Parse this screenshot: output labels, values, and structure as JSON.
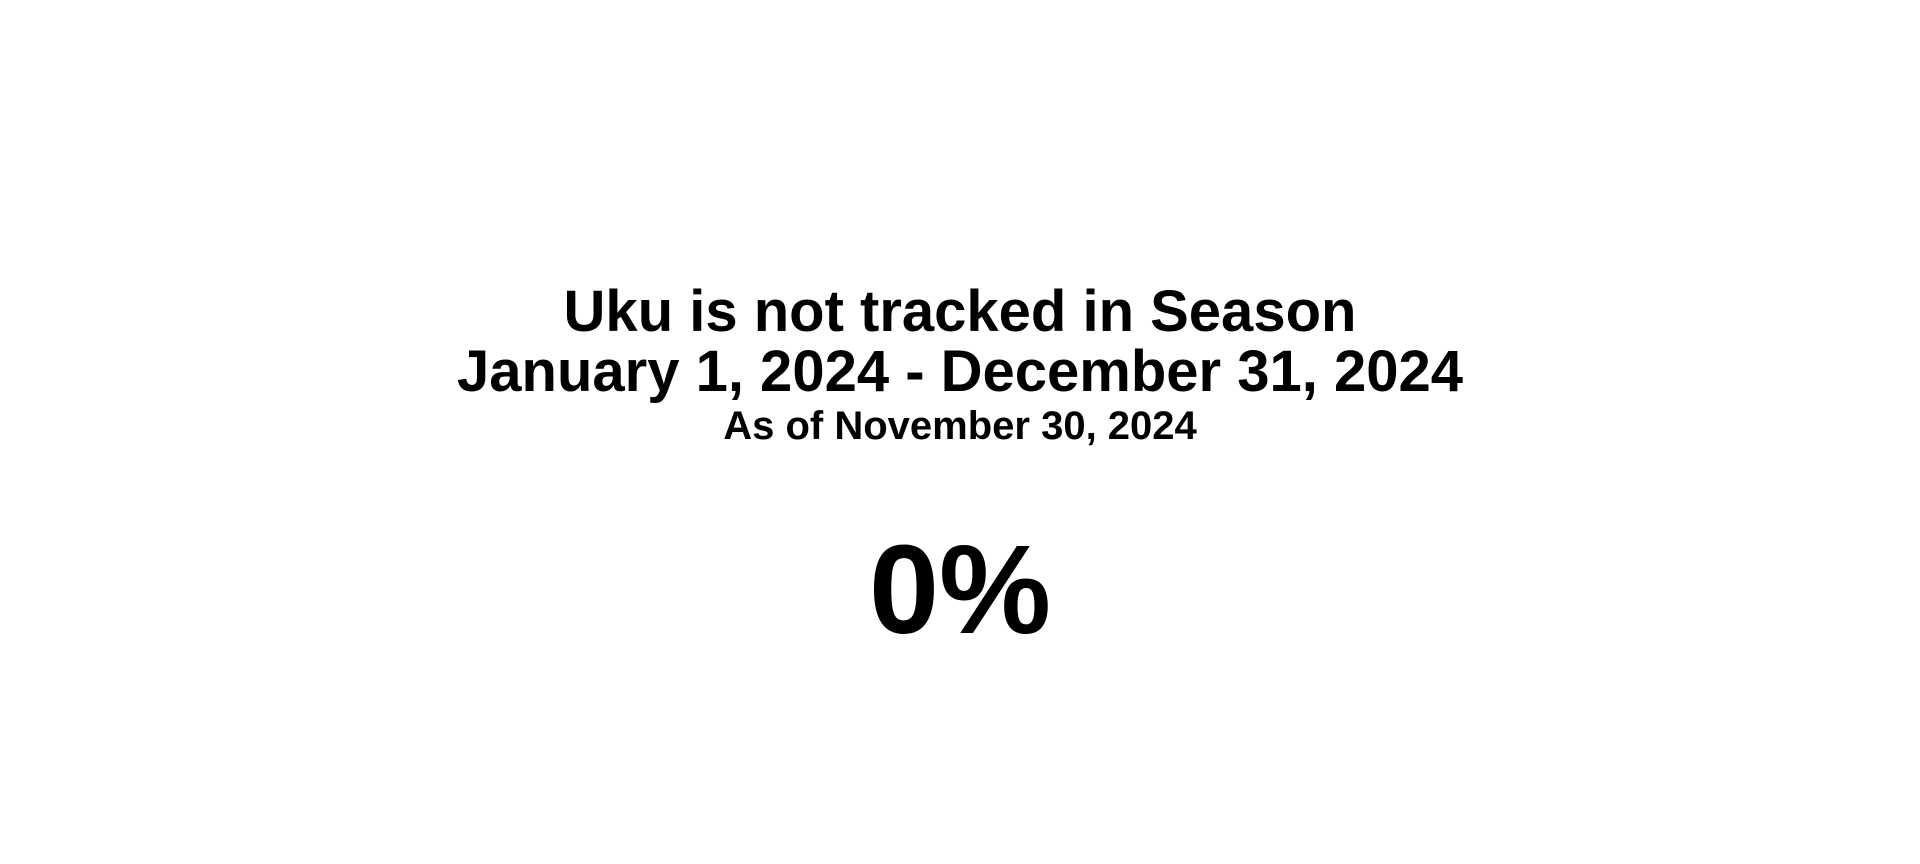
{
  "status": {
    "headline": "Uku is not tracked in Season",
    "season_range": "January 1, 2024 - December 31, 2024",
    "as_of": "As of November 30, 2024",
    "percent": "0%"
  }
}
